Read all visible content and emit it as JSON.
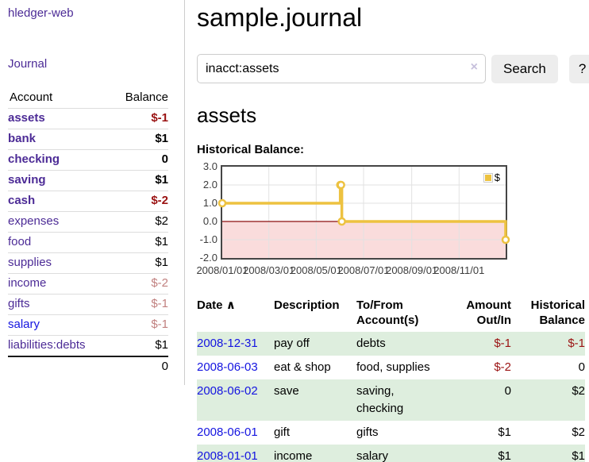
{
  "sidebar": {
    "brand": "hledger-web",
    "nav_journal": "Journal",
    "accounts": {
      "header_account": "Account",
      "header_balance": "Balance",
      "rows": [
        {
          "name": "assets",
          "balance": "$-1",
          "indent": 1,
          "bold": true,
          "negative": true,
          "link": "purple"
        },
        {
          "name": "bank",
          "balance": "$1",
          "indent": 2,
          "bold": true,
          "negative": false,
          "link": "purple"
        },
        {
          "name": "checking",
          "balance": "0",
          "indent": 3,
          "bold": true,
          "negative": false,
          "link": "purple"
        },
        {
          "name": "saving",
          "balance": "$1",
          "indent": 3,
          "bold": true,
          "negative": false,
          "link": "purple"
        },
        {
          "name": "cash",
          "balance": "$-2",
          "indent": 2,
          "bold": true,
          "negative": true,
          "link": "purple"
        },
        {
          "name": "expenses",
          "balance": "$2",
          "indent": 1,
          "bold": false,
          "negative": false,
          "link": "purple"
        },
        {
          "name": "food",
          "balance": "$1",
          "indent": 2,
          "bold": false,
          "negative": false,
          "link": "purple"
        },
        {
          "name": "supplies",
          "balance": "$1",
          "indent": 2,
          "bold": false,
          "negative": false,
          "link": "purple"
        },
        {
          "name": "income",
          "balance": "$-2",
          "indent": 1,
          "bold": false,
          "negative": true,
          "link": "purple"
        },
        {
          "name": "gifts",
          "balance": "$-1",
          "indent": 2,
          "bold": false,
          "negative": true,
          "link": "purple"
        },
        {
          "name": "salary",
          "balance": "$-1",
          "indent": 2,
          "bold": false,
          "negative": true,
          "link": "blue"
        },
        {
          "name": "liabilities:debts",
          "balance": "$1",
          "indent": 1,
          "bold": false,
          "negative": false,
          "link": "purple"
        }
      ],
      "total": "0"
    }
  },
  "header": {
    "title": "sample.journal"
  },
  "search": {
    "value": "inacct:assets",
    "clear_icon": "×",
    "button_label": "Search",
    "help_label": "?"
  },
  "register": {
    "heading": "assets",
    "chart_label": "Historical Balance:",
    "table": {
      "headers": {
        "date": "Date",
        "sort_icon": "∧",
        "description": "Description",
        "accounts": "To/From Account(s)",
        "amount": "Amount Out/In",
        "balance": "Historical Balance"
      },
      "rows": [
        {
          "date": "2008-12-31",
          "description": "pay off",
          "accounts": "debts",
          "amount": "$-1",
          "amount_negative": true,
          "balance": "$-1",
          "balance_negative": true
        },
        {
          "date": "2008-06-03",
          "description": "eat & shop",
          "accounts": "food, supplies",
          "amount": "$-2",
          "amount_negative": true,
          "balance": "0",
          "balance_negative": false
        },
        {
          "date": "2008-06-02",
          "description": "save",
          "accounts": "saving, checking",
          "amount": "0",
          "amount_negative": false,
          "balance": "$2",
          "balance_negative": false
        },
        {
          "date": "2008-06-01",
          "description": "gift",
          "accounts": "gifts",
          "amount": "$1",
          "amount_negative": false,
          "balance": "$2",
          "balance_negative": false
        },
        {
          "date": "2008-01-01",
          "description": "income",
          "accounts": "salary",
          "amount": "$1",
          "amount_negative": false,
          "balance": "$1",
          "balance_negative": false
        }
      ]
    }
  },
  "chart_data": {
    "type": "line",
    "step": true,
    "title": "Historical Balance:",
    "x_range": [
      "2008-01-01",
      "2008-12-31"
    ],
    "ylim": [
      -2,
      3
    ],
    "y_ticks": [
      "3.0",
      "2.0",
      "1.0",
      "0.0",
      "-1.0",
      "-2.0"
    ],
    "x_ticks": [
      "2008/01/01",
      "2008/03/01",
      "2008/05/01",
      "2008/07/01",
      "2008/09/01",
      "2008/11/01"
    ],
    "series": [
      {
        "name": "$",
        "color": "#edc240",
        "points": [
          [
            "2008-01-01",
            1
          ],
          [
            "2008-06-01",
            2
          ],
          [
            "2008-06-02",
            2
          ],
          [
            "2008-06-03",
            0
          ],
          [
            "2008-12-31",
            -1
          ]
        ]
      }
    ],
    "legend": "$",
    "legend_position": "top-right",
    "grid": true,
    "zero_line_color": "#8c0f0f",
    "negative_region_fill": "#fadcdc",
    "gridline_color": "#e2e2e2"
  }
}
